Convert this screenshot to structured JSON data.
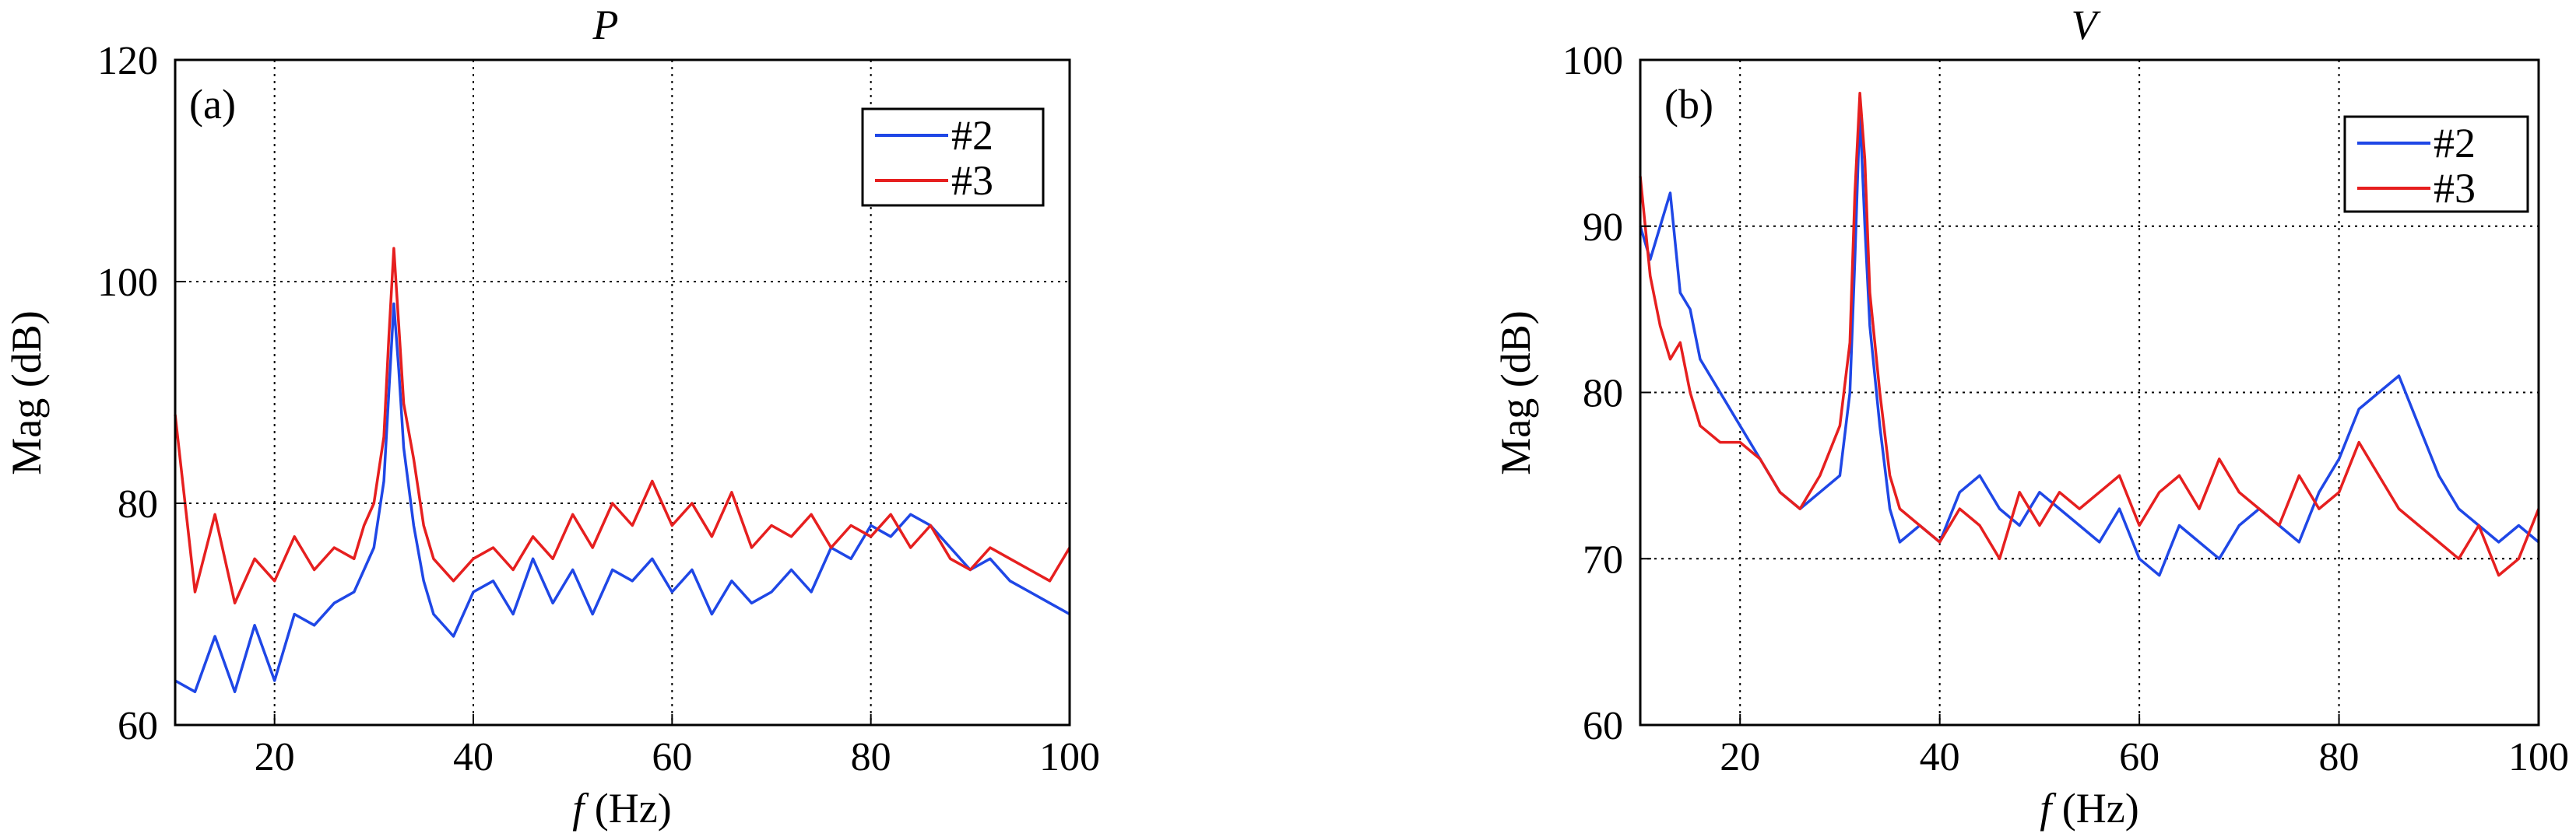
{
  "figure": {
    "panels": [
      {
        "title": "P",
        "panel_label": "(a)",
        "ylabel": "Mag (dB)",
        "xlabel_var": "f",
        "xlabel_unit": " (Hz)"
      },
      {
        "title": "V",
        "panel_label": "(b)",
        "ylabel": "Mag (dB)",
        "xlabel_var": "f",
        "xlabel_unit": " (Hz)"
      }
    ]
  },
  "chart_data": [
    {
      "type": "line",
      "title": "P",
      "xlabel": "f (Hz)",
      "ylabel": "Mag (dB)",
      "xlim": [
        10,
        100
      ],
      "ylim": [
        60,
        120
      ],
      "xticks": [
        20,
        40,
        60,
        80,
        100
      ],
      "yticks": [
        60,
        80,
        100,
        120
      ],
      "grid": true,
      "legend_position": "top-right",
      "series": [
        {
          "name": "#2",
          "color": "#1f47e6",
          "x": [
            10,
            12,
            14,
            16,
            18,
            20,
            22,
            24,
            26,
            28,
            29,
            30,
            31,
            31.5,
            32,
            32.5,
            33,
            34,
            35,
            36,
            38,
            40,
            42,
            44,
            46,
            48,
            50,
            52,
            54,
            56,
            58,
            60,
            62,
            64,
            66,
            68,
            70,
            72,
            74,
            76,
            78,
            80,
            82,
            84,
            86,
            88,
            90,
            92,
            94,
            96,
            98,
            100
          ],
          "y": [
            64,
            63,
            68,
            63,
            69,
            64,
            70,
            69,
            71,
            72,
            74,
            76,
            82,
            90,
            98,
            92,
            85,
            78,
            73,
            70,
            68,
            72,
            73,
            70,
            75,
            71,
            74,
            70,
            74,
            73,
            75,
            72,
            74,
            70,
            73,
            71,
            72,
            74,
            72,
            76,
            75,
            78,
            77,
            79,
            78,
            76,
            74,
            75,
            73,
            72,
            71,
            70
          ]
        },
        {
          "name": "#3",
          "color": "#e61f1f",
          "x": [
            10,
            12,
            14,
            16,
            18,
            20,
            22,
            24,
            26,
            28,
            29,
            30,
            31,
            31.5,
            32,
            32.5,
            33,
            34,
            35,
            36,
            38,
            40,
            42,
            44,
            46,
            48,
            50,
            52,
            54,
            56,
            58,
            60,
            62,
            64,
            66,
            68,
            70,
            72,
            74,
            76,
            78,
            80,
            82,
            84,
            86,
            88,
            90,
            92,
            94,
            96,
            98,
            100
          ],
          "y": [
            88,
            72,
            79,
            71,
            75,
            73,
            77,
            74,
            76,
            75,
            78,
            80,
            86,
            95,
            103,
            96,
            89,
            84,
            78,
            75,
            73,
            75,
            76,
            74,
            77,
            75,
            79,
            76,
            80,
            78,
            82,
            78,
            80,
            77,
            81,
            76,
            78,
            77,
            79,
            76,
            78,
            77,
            79,
            76,
            78,
            75,
            74,
            76,
            75,
            74,
            73,
            76
          ]
        }
      ]
    },
    {
      "type": "line",
      "title": "V",
      "xlabel": "f (Hz)",
      "ylabel": "Mag (dB)",
      "xlim": [
        10,
        100
      ],
      "ylim": [
        60,
        100
      ],
      "xticks": [
        20,
        40,
        60,
        80,
        100
      ],
      "yticks": [
        60,
        70,
        80,
        90,
        100
      ],
      "grid": true,
      "legend_position": "top-right",
      "series": [
        {
          "name": "#2",
          "color": "#1f47e6",
          "x": [
            10,
            11,
            12,
            13,
            14,
            15,
            16,
            18,
            20,
            22,
            24,
            26,
            28,
            30,
            31,
            31.5,
            32,
            32.5,
            33,
            34,
            35,
            36,
            38,
            40,
            42,
            44,
            46,
            48,
            50,
            52,
            54,
            56,
            58,
            60,
            62,
            64,
            66,
            68,
            70,
            72,
            74,
            76,
            78,
            80,
            82,
            84,
            86,
            88,
            90,
            92,
            94,
            96,
            98,
            100
          ],
          "y": [
            90,
            88,
            90,
            92,
            86,
            85,
            82,
            80,
            78,
            76,
            74,
            73,
            74,
            75,
            80,
            88,
            97,
            90,
            84,
            78,
            73,
            71,
            72,
            71,
            74,
            75,
            73,
            72,
            74,
            73,
            72,
            71,
            73,
            70,
            69,
            72,
            71,
            70,
            72,
            73,
            72,
            71,
            74,
            76,
            79,
            80,
            81,
            78,
            75,
            73,
            72,
            71,
            72,
            71
          ]
        },
        {
          "name": "#3",
          "color": "#e61f1f",
          "x": [
            10,
            11,
            12,
            13,
            14,
            15,
            16,
            18,
            20,
            22,
            24,
            26,
            28,
            30,
            31,
            31.5,
            32,
            32.5,
            33,
            34,
            35,
            36,
            38,
            40,
            42,
            44,
            46,
            48,
            50,
            52,
            54,
            56,
            58,
            60,
            62,
            64,
            66,
            68,
            70,
            72,
            74,
            76,
            78,
            80,
            82,
            84,
            86,
            88,
            90,
            92,
            94,
            96,
            98,
            100
          ],
          "y": [
            93,
            87,
            84,
            82,
            83,
            80,
            78,
            77,
            77,
            76,
            74,
            73,
            75,
            78,
            83,
            92,
            98,
            94,
            86,
            80,
            75,
            73,
            72,
            71,
            73,
            72,
            70,
            74,
            72,
            74,
            73,
            74,
            75,
            72,
            74,
            75,
            73,
            76,
            74,
            73,
            72,
            75,
            73,
            74,
            77,
            75,
            73,
            72,
            71,
            70,
            72,
            69,
            70,
            73
          ]
        }
      ]
    }
  ]
}
